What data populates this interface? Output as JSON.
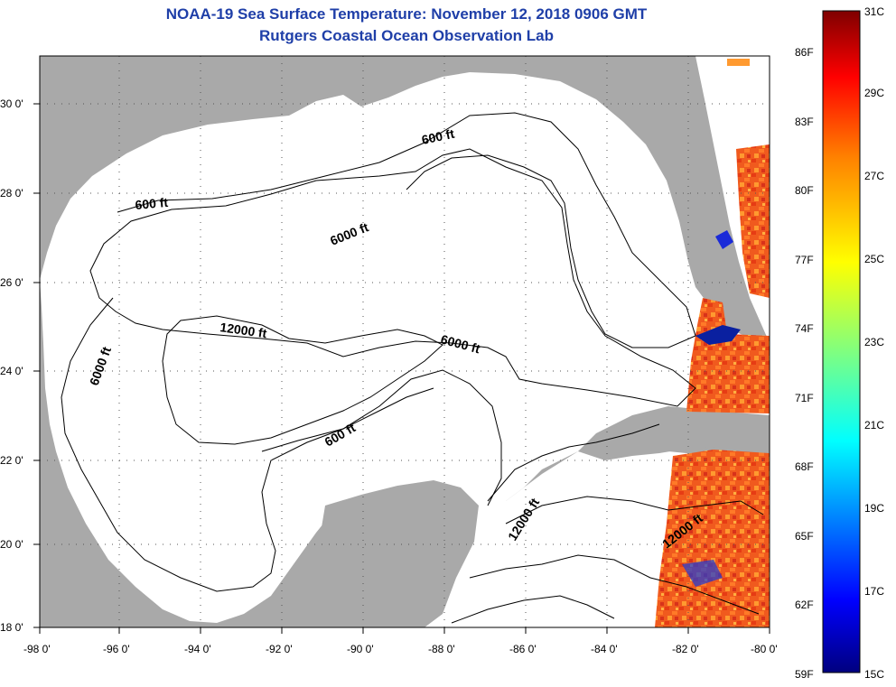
{
  "title": {
    "line1": "NOAA-19 Sea Surface Temperature:  November 12, 2018 0906 GMT",
    "line2": "Rutgers Coastal Ocean Observation Lab"
  },
  "map": {
    "longitude_ticks": [
      "-98 0'",
      "-96 0'",
      "-94 0'",
      "-92 0'",
      "-90 0'",
      "-88 0'",
      "-86 0'",
      "-84 0'",
      "-82 0'",
      "-80 0'"
    ],
    "latitude_ticks": [
      "30 0'",
      "28 0'",
      "26 0'",
      "24 0'",
      "22 0'",
      "20 0'",
      "18 0'"
    ],
    "contour_labels": {
      "c600_north": "600 ft",
      "c600_west": "600 ft",
      "c6000_center": "6000 ft",
      "c6000_west": "6000 ft",
      "c12000_center": "12000 ft",
      "c6000_east": "6000 ft",
      "c600_yucatan": "600 ft",
      "c12000_channel": "12000 ft",
      "c12000_caribbean": "12000 ft"
    },
    "colors": {
      "land": "#a9a9a9",
      "ocean_nodata": "#ffffff",
      "frame": "#000000"
    }
  },
  "colorbar": {
    "fahrenheit": [
      "86F",
      "83F",
      "80F",
      "77F",
      "74F",
      "71F",
      "68F",
      "65F",
      "62F",
      "59F"
    ],
    "celsius": [
      "31C",
      "29C",
      "27C",
      "25C",
      "23C",
      "21C",
      "19C",
      "17C",
      "15C"
    ],
    "range_c": [
      15,
      31
    ],
    "colormap": "jet"
  }
}
